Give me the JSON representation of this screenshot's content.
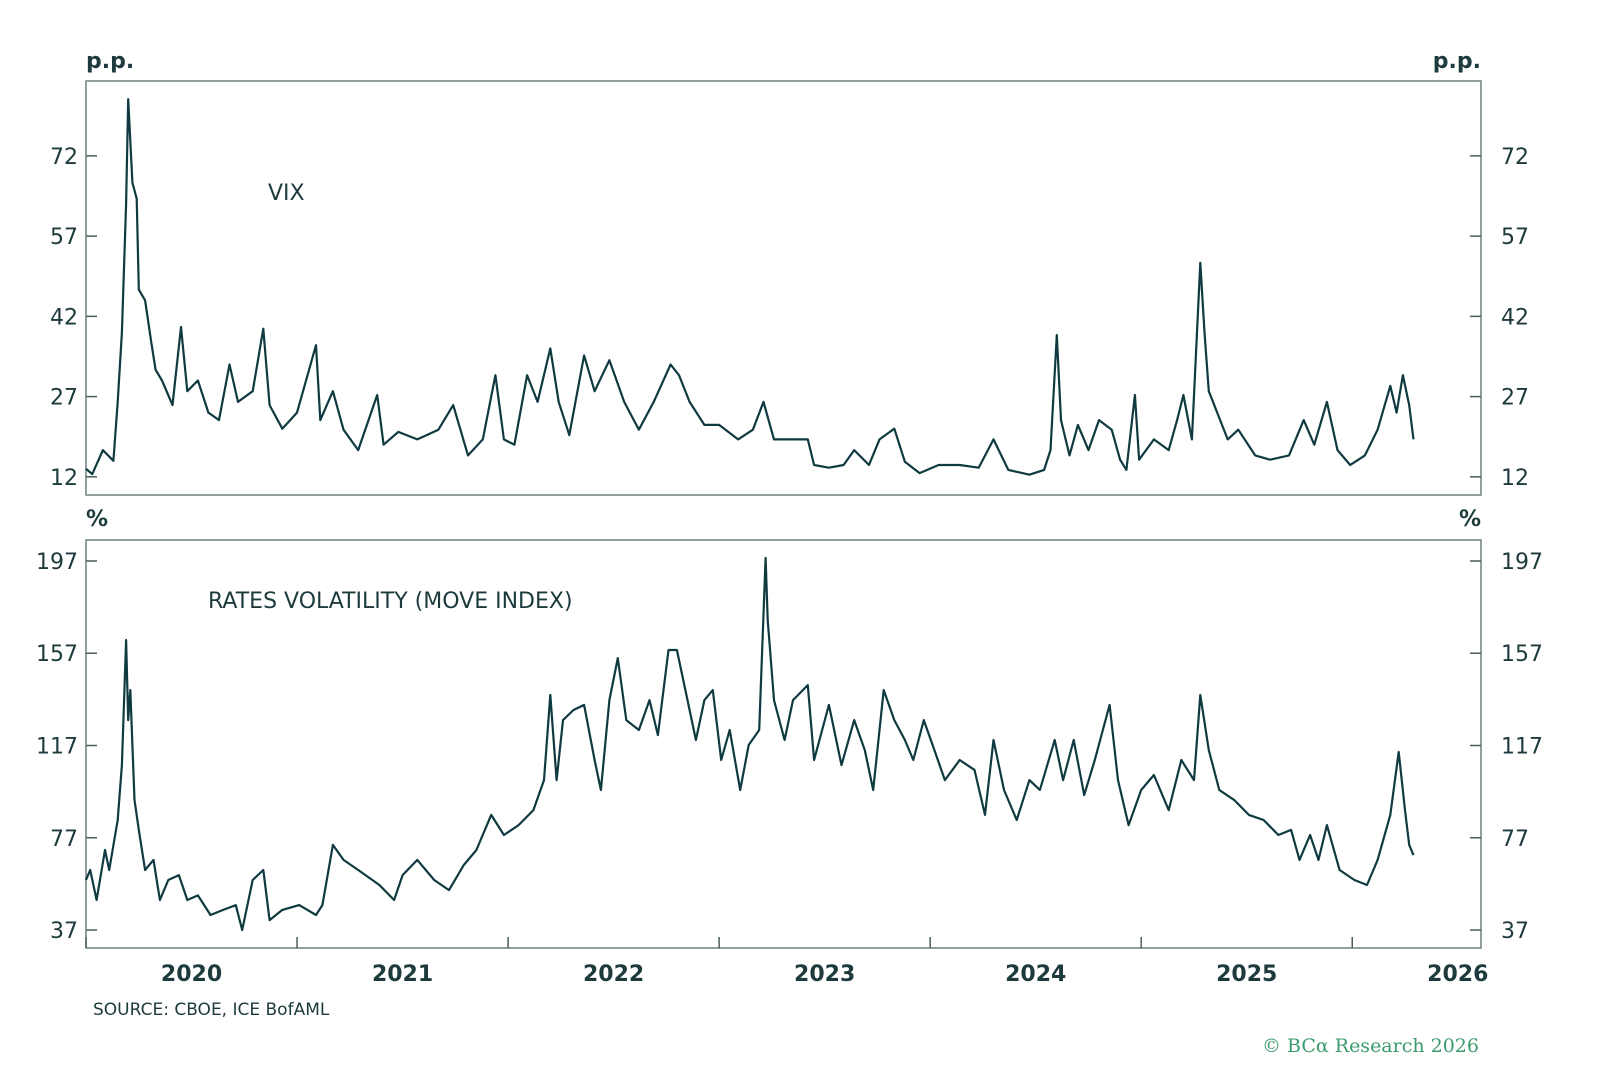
{
  "chart_data": [
    {
      "type": "line",
      "title": "VIX",
      "ylabel": "p.p.",
      "ylim": [
        8.6,
        86
      ],
      "xlim": [
        2020,
        2026.61
      ],
      "yticks": [
        "72",
        "57",
        "42",
        "27",
        "12"
      ],
      "grid": false,
      "series": [
        {
          "x": [
            2020.0,
            2020.03,
            2020.08,
            2020.13,
            2020.15,
            2020.17,
            2020.19,
            2020.2,
            2020.22,
            2020.24,
            2020.25,
            2020.28,
            2020.31,
            2020.33,
            2020.36,
            2020.41,
            2020.45,
            2020.48,
            2020.53,
            2020.58,
            2020.63,
            2020.68,
            2020.72,
            2020.79,
            2020.84,
            2020.87,
            2020.93,
            2021.0,
            2021.09,
            2021.11,
            2021.17,
            2021.22,
            2021.29,
            2021.38,
            2021.41,
            2021.48,
            2021.57,
            2021.67,
            2021.74,
            2021.81,
            2021.88,
            2021.94,
            2021.98,
            2022.03,
            2022.09,
            2022.14,
            2022.2,
            2022.24,
            2022.29,
            2022.36,
            2022.41,
            2022.48,
            2022.55,
            2022.62,
            2022.69,
            2022.77,
            2022.81,
            2022.86,
            2022.93,
            2023.0,
            2023.09,
            2023.16,
            2023.21,
            2023.26,
            2023.33,
            2023.42,
            2023.45,
            2023.52,
            2023.59,
            2023.64,
            2023.71,
            2023.76,
            2023.83,
            2023.88,
            2023.95,
            2024.04,
            2024.14,
            2024.23,
            2024.3,
            2024.37,
            2024.47,
            2024.54,
            2024.57,
            2024.6,
            2024.62,
            2024.66,
            2024.7,
            2024.75,
            2024.8,
            2024.86,
            2024.9,
            2024.93,
            2024.97,
            2024.99,
            2025.06,
            2025.13,
            2025.17,
            2025.2,
            2025.24,
            2025.28,
            2025.3,
            2025.32,
            2025.36,
            2025.41,
            2025.46,
            2025.54,
            2025.61,
            2025.7,
            2025.77,
            2025.82,
            2025.88,
            2025.93,
            2025.99,
            2026.06,
            2026.12,
            2026.18,
            2026.21,
            2026.24,
            2026.27,
            2026.29
          ],
          "values": [
            13.5,
            12.5,
            17,
            15,
            26,
            39,
            63,
            82.6,
            67,
            64,
            47,
            45,
            37,
            32,
            30,
            25.4,
            40,
            28,
            30,
            24,
            22.6,
            33,
            26,
            28,
            39.7,
            25.4,
            21,
            24,
            36.6,
            22.6,
            28,
            20.8,
            17,
            27.3,
            18,
            20.4,
            19,
            20.8,
            25.4,
            16,
            19,
            31,
            19,
            18,
            31,
            26,
            36,
            26,
            19.8,
            34.7,
            28,
            33.8,
            26,
            20.8,
            26,
            33,
            31,
            26,
            21.7,
            21.7,
            19,
            20.8,
            26,
            19,
            19,
            19,
            14.2,
            13.7,
            14.2,
            17,
            14.2,
            19,
            21,
            14.8,
            12.7,
            14.2,
            14.2,
            13.7,
            19,
            13.3,
            12.4,
            13.3,
            17,
            38.5,
            22.6,
            16,
            21.7,
            17,
            22.6,
            20.8,
            15.2,
            13.3,
            27.3,
            15.2,
            19,
            17,
            22.6,
            27.3,
            19,
            52,
            39,
            28,
            24,
            19,
            20.8,
            16,
            15.2,
            16,
            22.6,
            18,
            26,
            17,
            14.2,
            16,
            20.8,
            29,
            24,
            31,
            25.4,
            19
          ]
        }
      ]
    },
    {
      "type": "line",
      "title": "RATES VOLATILITY (MOVE INDEX)",
      "ylabel": "%",
      "ylim": [
        29.2,
        206.1
      ],
      "xlim": [
        2020,
        2026.61
      ],
      "yticks": [
        "197",
        "157",
        "117",
        "77",
        "37"
      ],
      "xticks": [
        "2020",
        "2021",
        "2022",
        "2023",
        "2024",
        "2025",
        "2026"
      ],
      "grid": false,
      "series": [
        {
          "x": [
            2020.0,
            2020.02,
            2020.05,
            2020.09,
            2020.11,
            2020.15,
            2020.17,
            2020.19,
            2020.2,
            2020.21,
            2020.23,
            2020.25,
            2020.28,
            2020.32,
            2020.35,
            2020.39,
            2020.44,
            2020.48,
            2020.53,
            2020.59,
            2020.65,
            2020.71,
            2020.74,
            2020.79,
            2020.84,
            2020.87,
            2020.93,
            2021.01,
            2021.09,
            2021.12,
            2021.17,
            2021.22,
            2021.29,
            2021.39,
            2021.46,
            2021.5,
            2021.57,
            2021.65,
            2021.72,
            2021.79,
            2021.85,
            2021.92,
            2021.98,
            2022.05,
            2022.12,
            2022.17,
            2022.2,
            2022.23,
            2022.26,
            2022.31,
            2022.36,
            2022.41,
            2022.44,
            2022.48,
            2022.52,
            2022.56,
            2022.62,
            2022.67,
            2022.71,
            2022.76,
            2022.8,
            2022.85,
            2022.89,
            2022.93,
            2022.97,
            2023.01,
            2023.05,
            2023.1,
            2023.14,
            2023.19,
            2023.22,
            2023.23,
            2023.26,
            2023.31,
            2023.35,
            2023.42,
            2023.45,
            2023.52,
            2023.58,
            2023.64,
            2023.69,
            2023.73,
            2023.78,
            2023.83,
            2023.88,
            2023.92,
            2023.97,
            2024.02,
            2024.07,
            2024.14,
            2024.21,
            2024.26,
            2024.3,
            2024.35,
            2024.41,
            2024.47,
            2024.52,
            2024.59,
            2024.63,
            2024.68,
            2024.73,
            2024.78,
            2024.85,
            2024.89,
            2024.94,
            2025.0,
            2025.06,
            2025.13,
            2025.19,
            2025.25,
            2025.28,
            2025.32,
            2025.37,
            2025.44,
            2025.51,
            2025.58,
            2025.65,
            2025.71,
            2025.75,
            2025.8,
            2025.84,
            2025.88,
            2025.94,
            2026.01,
            2026.07,
            2026.12,
            2026.18,
            2026.22,
            2026.25,
            2026.27,
            2026.29
          ],
          "values": [
            58.7,
            63,
            50,
            71.7,
            63,
            84.7,
            108.5,
            162.7,
            128,
            141,
            93.4,
            80.4,
            63,
            67.4,
            50,
            58.7,
            60.8,
            50,
            52,
            43.5,
            45.7,
            47.8,
            37,
            58.7,
            63,
            41.3,
            45.7,
            47.8,
            43.5,
            47.8,
            73.9,
            67.4,
            63,
            56.5,
            50,
            60.8,
            67.4,
            58.7,
            54.3,
            65.2,
            71.7,
            86.9,
            78.2,
            82.5,
            89,
            102,
            138.9,
            102,
            128,
            132.4,
            134.6,
            110.7,
            97.7,
            136.7,
            154.9,
            128,
            123.7,
            136.7,
            121.5,
            158.4,
            158.4,
            136.7,
            119.4,
            136.7,
            141,
            110.7,
            123.7,
            97.7,
            117.2,
            123.7,
            198.3,
            171.4,
            136.7,
            119.4,
            136.7,
            143.2,
            110.7,
            134.6,
            108.5,
            128,
            115,
            97.7,
            141,
            128,
            119.4,
            110.7,
            128,
            115,
            102,
            110.7,
            106.4,
            86.9,
            119.4,
            97.7,
            84.7,
            102,
            97.7,
            119.4,
            102,
            119.4,
            95.5,
            110.7,
            134.6,
            102,
            82.5,
            97.7,
            104.2,
            89,
            110.7,
            102,
            138.9,
            115,
            97.7,
            93.4,
            86.9,
            84.7,
            78.2,
            80.4,
            67.4,
            78.2,
            67.4,
            82.5,
            63,
            58.7,
            56.5,
            67.4,
            86.9,
            114.2,
            89,
            73.9,
            69.5
          ]
        }
      ]
    }
  ],
  "source": "SOURCE: CBOE, ICE BofAML",
  "copyright": "© BCα Research 2026",
  "colors": {
    "line": "#0f3a40",
    "frame": "#6f7f80",
    "brand": "#3c9a6c"
  }
}
